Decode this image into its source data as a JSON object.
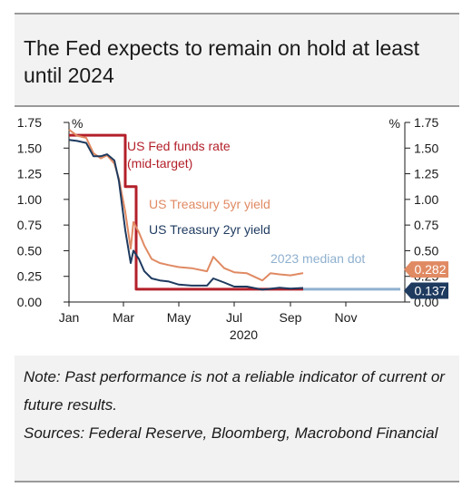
{
  "title": "The Fed expects to remain on hold at least until 2024",
  "note": "Note: Past performance is not a reliable indicator of current or future results.",
  "sources": "Sources: Federal Reserve, Bloomberg, Macrobond Financial",
  "colors": {
    "fed_funds": "#b3202a",
    "tsy5": "#e08a63",
    "tsy2": "#1e3a5f",
    "median_dot": "#8fb0cf",
    "axis": "#1a1a1a"
  },
  "chart_data": {
    "type": "line",
    "xlabel": "2020",
    "x_ticks": [
      "Jan",
      "Mar",
      "May",
      "Jul",
      "Sep",
      "Nov"
    ],
    "y_left_unit": "%",
    "y_right_unit": "%",
    "ylim": [
      0,
      1.75
    ],
    "y_ticks": [
      "1.75",
      "1.50",
      "1.25",
      "1.00",
      "0.75",
      "0.50",
      "0.25",
      "0.00"
    ],
    "grid": false,
    "series": [
      {
        "name": "US Fed funds rate (mid-target)",
        "label_line1": "US Fed funds rate",
        "label_line2": "(mid-target)",
        "color": "#b3202a",
        "x": [
          "2020-01-01",
          "2020-03-03",
          "2020-03-03",
          "2020-03-15",
          "2020-03-15",
          "2020-09-15"
        ],
        "y": [
          1.625,
          1.625,
          1.125,
          1.125,
          0.125,
          0.125
        ]
      },
      {
        "name": "US Treasury 5yr yield",
        "color": "#e08a63",
        "x": [
          "2020-01-01",
          "2020-01-10",
          "2020-01-20",
          "2020-01-28",
          "2020-02-05",
          "2020-02-12",
          "2020-02-20",
          "2020-02-25",
          "2020-03-03",
          "2020-03-09",
          "2020-03-12",
          "2020-03-18",
          "2020-03-24",
          "2020-04-01",
          "2020-04-10",
          "2020-04-20",
          "2020-05-01",
          "2020-05-15",
          "2020-06-01",
          "2020-06-08",
          "2020-06-20",
          "2020-07-01",
          "2020-07-15",
          "2020-08-01",
          "2020-08-10",
          "2020-08-20",
          "2020-09-01",
          "2020-09-15"
        ],
        "y": [
          1.68,
          1.62,
          1.6,
          1.45,
          1.4,
          1.43,
          1.35,
          1.2,
          0.88,
          0.52,
          0.78,
          0.68,
          0.55,
          0.42,
          0.38,
          0.36,
          0.34,
          0.33,
          0.3,
          0.44,
          0.33,
          0.29,
          0.28,
          0.21,
          0.28,
          0.27,
          0.26,
          0.282
        ]
      },
      {
        "name": "US Treasury 2yr yield",
        "color": "#1e3a5f",
        "x": [
          "2020-01-01",
          "2020-01-10",
          "2020-01-20",
          "2020-01-28",
          "2020-02-05",
          "2020-02-12",
          "2020-02-20",
          "2020-02-25",
          "2020-03-03",
          "2020-03-09",
          "2020-03-12",
          "2020-03-18",
          "2020-03-24",
          "2020-04-01",
          "2020-04-10",
          "2020-04-20",
          "2020-05-01",
          "2020-05-15",
          "2020-06-01",
          "2020-06-08",
          "2020-06-20",
          "2020-07-01",
          "2020-07-15",
          "2020-08-01",
          "2020-08-20",
          "2020-09-01",
          "2020-09-15"
        ],
        "y": [
          1.58,
          1.57,
          1.55,
          1.42,
          1.42,
          1.44,
          1.38,
          1.18,
          0.7,
          0.38,
          0.5,
          0.42,
          0.3,
          0.23,
          0.21,
          0.2,
          0.17,
          0.16,
          0.16,
          0.23,
          0.19,
          0.15,
          0.15,
          0.12,
          0.14,
          0.13,
          0.137
        ]
      },
      {
        "name": "2023 median dot",
        "color": "#8fb0cf",
        "x": [
          "2020-09-15",
          "2020-12-31"
        ],
        "y": [
          0.125,
          0.125
        ]
      }
    ],
    "end_labels": [
      {
        "text": "0.282",
        "value": 0.282,
        "color": "#e08a63"
      },
      {
        "text": "0.137",
        "value": 0.137,
        "color": "#1e3a5f"
      }
    ]
  }
}
